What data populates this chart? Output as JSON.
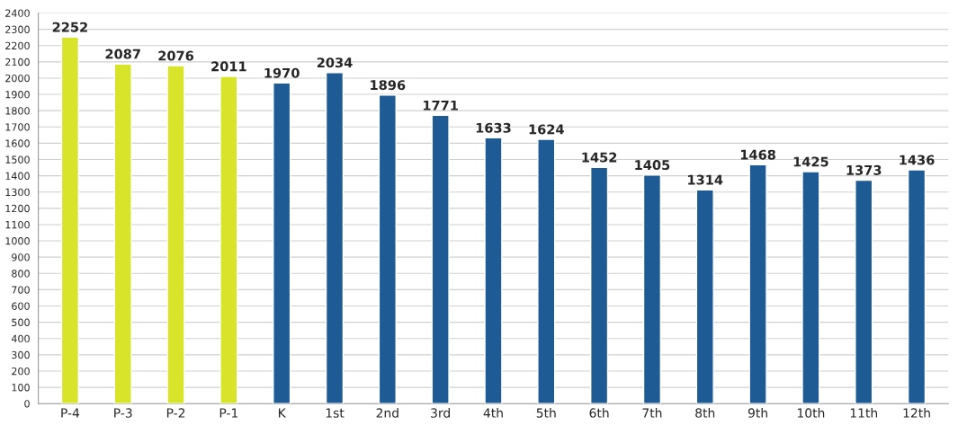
{
  "chart_data": {
    "type": "bar",
    "categories": [
      "P-4",
      "P-3",
      "P-2",
      "P-1",
      "K",
      "1st",
      "2nd",
      "3rd",
      "4th",
      "5th",
      "6th",
      "7th",
      "8th",
      "9th",
      "10th",
      "11th",
      "12th"
    ],
    "values": [
      2252,
      2087,
      2076,
      2011,
      1970,
      2034,
      1896,
      1771,
      1633,
      1624,
      1452,
      1405,
      1314,
      1468,
      1425,
      1373,
      1436
    ],
    "colors": [
      "#d8e42a",
      "#d8e42a",
      "#d8e42a",
      "#d8e42a",
      "#1e5b94",
      "#1e5b94",
      "#1e5b94",
      "#1e5b94",
      "#1e5b94",
      "#1e5b94",
      "#1e5b94",
      "#1e5b94",
      "#1e5b94",
      "#1e5b94",
      "#1e5b94",
      "#1e5b94",
      "#1e5b94"
    ],
    "ylim": [
      0,
      2400
    ],
    "yticks": [
      0,
      100,
      200,
      300,
      400,
      500,
      600,
      700,
      800,
      900,
      1000,
      1100,
      1200,
      1300,
      1400,
      1500,
      1600,
      1700,
      1800,
      1900,
      2000,
      2100,
      2200,
      2300,
      2400
    ],
    "grid": "y",
    "data_labels": true
  }
}
